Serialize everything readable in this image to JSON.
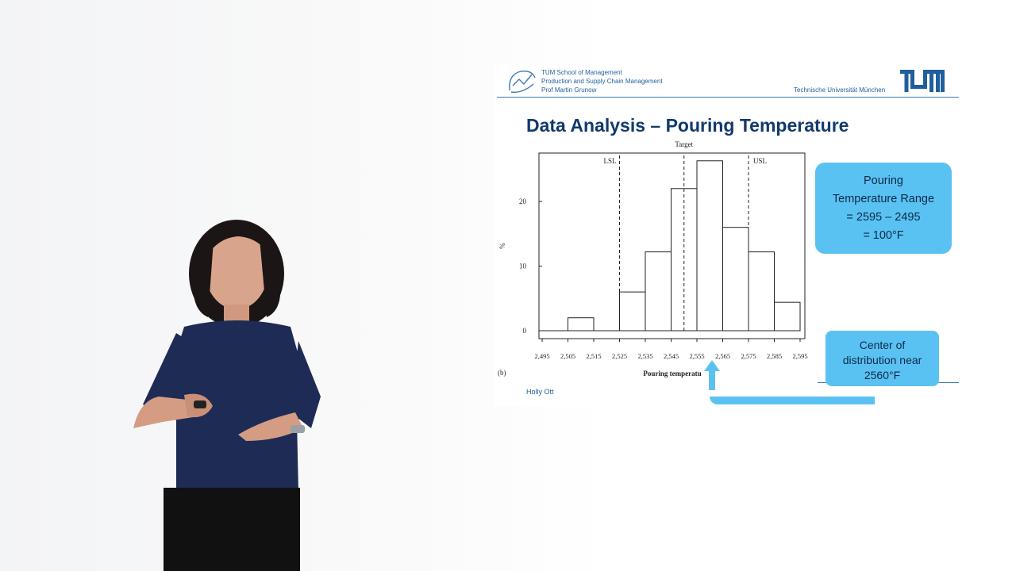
{
  "header": {
    "school_lines": [
      "TUM School of Management",
      "Production and Supply Chain Management",
      "Prof Martin Grunow"
    ],
    "university": "Technische Universität München"
  },
  "slide_title": "Data Analysis – Pouring Temperature",
  "footer": {
    "name": "Holly Ott"
  },
  "callouts": {
    "range_lines": [
      "Pouring",
      "Temperature Range",
      "= 2595 – 2495",
      "= 100°F"
    ],
    "center_lines": [
      "Center of",
      "distribution near",
      "2560°F"
    ]
  },
  "chart_data": {
    "type": "bar",
    "panel_label": "(b)",
    "xlabel": "Pouring temperatu",
    "ylabel": "%",
    "xticks": [
      2495,
      2505,
      2515,
      2525,
      2535,
      2545,
      2555,
      2565,
      2575,
      2585,
      2595
    ],
    "xtick_labels": [
      "2,495",
      "2,505",
      "2,515",
      "2,525",
      "2,535",
      "2,545",
      "2,555",
      "2,565",
      "2,575",
      "2,585",
      "2,595"
    ],
    "yticks": [
      0,
      10,
      20
    ],
    "ylim": [
      0,
      27.5
    ],
    "xlim": [
      2495,
      2595
    ],
    "bins": [
      {
        "x0": 2505,
        "x1": 2515,
        "value": 2
      },
      {
        "x0": 2515,
        "x1": 2525,
        "value": 0
      },
      {
        "x0": 2525,
        "x1": 2535,
        "value": 6
      },
      {
        "x0": 2535,
        "x1": 2545,
        "value": 12.2
      },
      {
        "x0": 2545,
        "x1": 2555,
        "value": 22
      },
      {
        "x0": 2555,
        "x1": 2565,
        "value": 26.3
      },
      {
        "x0": 2565,
        "x1": 2575,
        "value": 16
      },
      {
        "x0": 2575,
        "x1": 2585,
        "value": 12.2
      },
      {
        "x0": 2585,
        "x1": 2595,
        "value": 4.4
      }
    ],
    "reference_lines": [
      {
        "label": "LSL",
        "x": 2525
      },
      {
        "label": "Target",
        "x": 2550
      },
      {
        "label": "USL",
        "x": 2575
      }
    ]
  },
  "colors": {
    "accent": "#5ac2f2",
    "title": "#123a6b",
    "header_text": "#1f5f9e"
  }
}
